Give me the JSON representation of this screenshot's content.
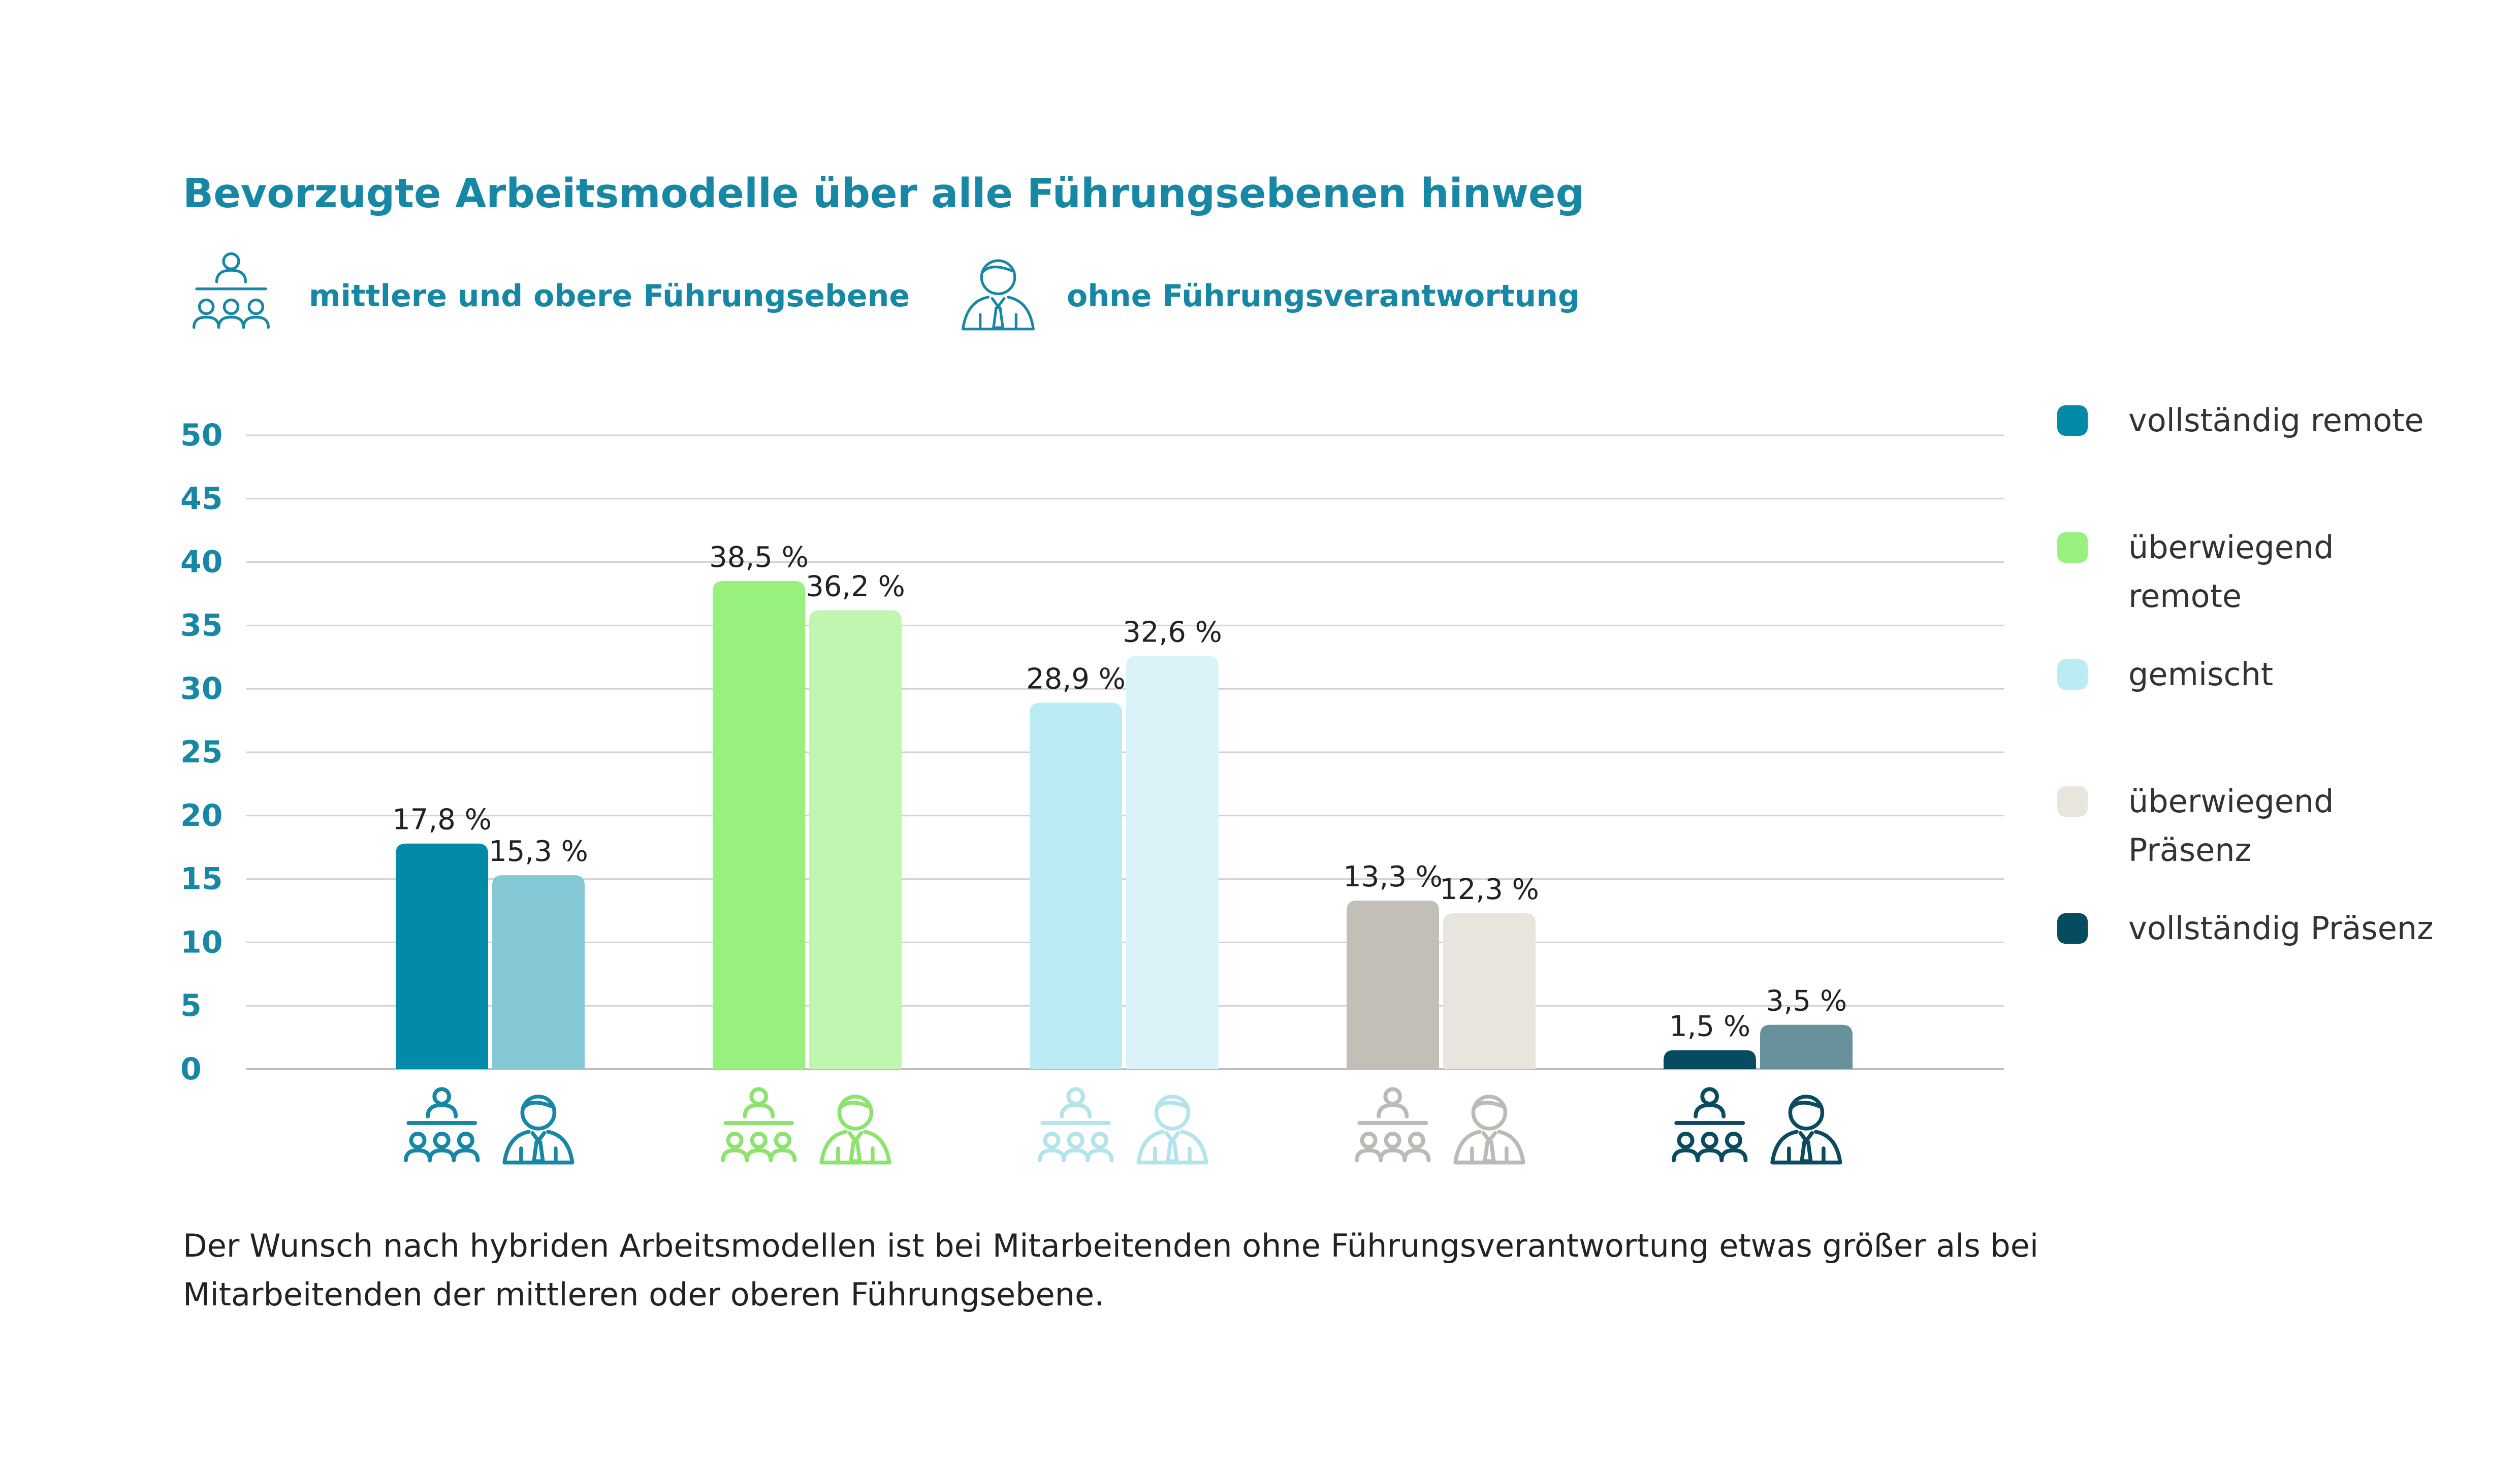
{
  "title": "Bevorzugte Arbeitsmodelle über alle Führungsebenen hinweg",
  "groups_legend": [
    {
      "label": "mittlere und obere Führungsebene",
      "icon": "management-group-icon"
    },
    {
      "label": "ohne Führungsverantwortung",
      "icon": "employee-person-icon"
    }
  ],
  "chart_data": {
    "type": "bar",
    "categories": [
      "vollständig remote",
      "überwiegend remote",
      "gemischt",
      "überwiegend Präsenz",
      "vollständig Präsenz"
    ],
    "series": [
      {
        "name": "mittlere und obere Führungsebene",
        "values": [
          17.8,
          38.5,
          28.9,
          13.3,
          1.5
        ]
      },
      {
        "name": "ohne Führungsverantwortung",
        "values": [
          15.3,
          36.2,
          32.6,
          12.3,
          3.5
        ]
      }
    ],
    "value_labels": [
      [
        "17,8 %",
        "15,3 %"
      ],
      [
        "38,5 %",
        "36,2 %"
      ],
      [
        "28,9 %",
        "32,6 %"
      ],
      [
        "13,3 %",
        "12,3 %"
      ],
      [
        "1,5 %",
        "3,5 %"
      ]
    ],
    "yticks": [
      "0",
      "5",
      "10",
      "15",
      "20",
      "25",
      "30",
      "35",
      "40",
      "45",
      "50"
    ],
    "ylim": [
      0,
      50
    ],
    "grid": true,
    "legend_position": "right",
    "colors": [
      [
        "#048aa9",
        "#84c8d6"
      ],
      [
        "#98f07e",
        "#c0f7b0"
      ],
      [
        "#bcecf3",
        "#daf3f8"
      ],
      [
        "#c2bfb9",
        "#e8e5df"
      ],
      [
        "#074b61",
        "#67919b"
      ]
    ],
    "icon_colors": [
      "#1787a6",
      "#8ce36d",
      "#b3e4ec",
      "#bdbab5",
      "#0b4b60"
    ]
  },
  "legend": [
    {
      "label": "vollständig remote",
      "color": "#048aa9"
    },
    {
      "label": "überwiegend remote",
      "color": "#98f07e"
    },
    {
      "label": "gemischt",
      "color": "#bcecf3"
    },
    {
      "label": "überwiegend Präsenz",
      "color": "#e8e5df"
    },
    {
      "label": "vollständig Präsenz",
      "color": "#074b61"
    }
  ],
  "caption": "Der Wunsch nach hybriden Arbeitsmodellen ist bei Mitarbeitenden ohne Führungsverantwortung etwas größer als bei Mitarbeitenden der mittleren oder oberen Führungsebene."
}
